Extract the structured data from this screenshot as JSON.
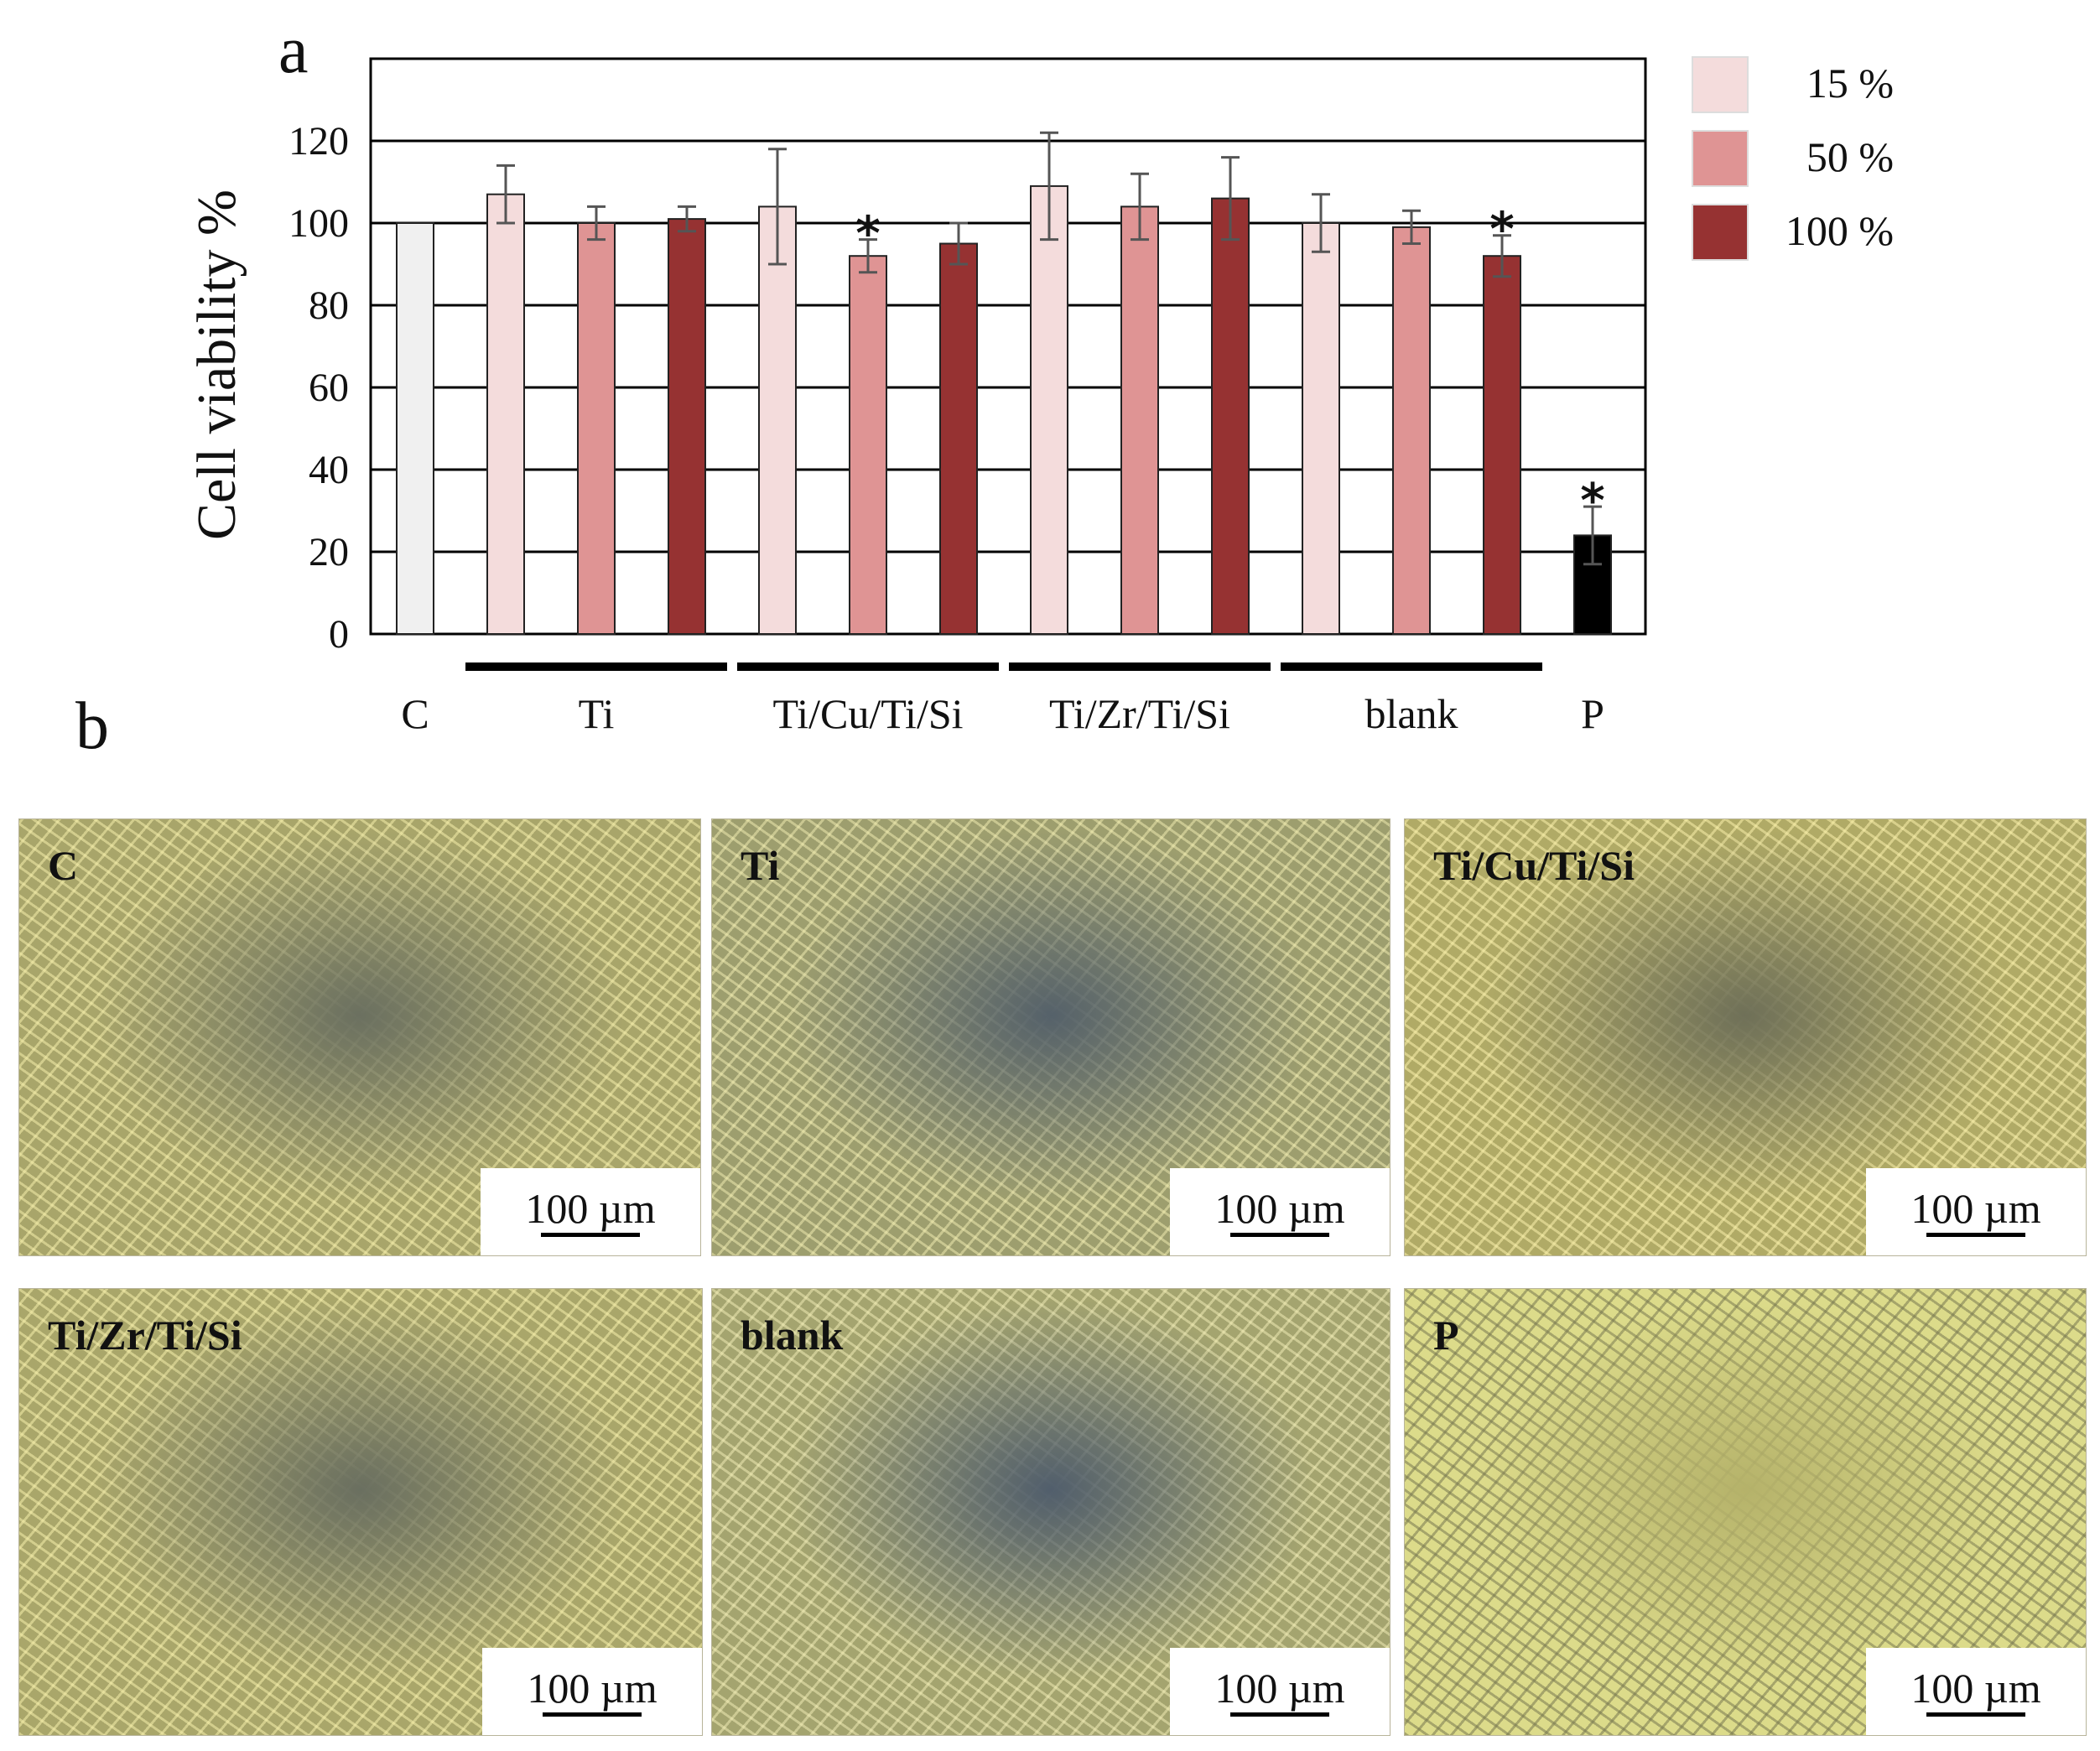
{
  "panel_a_label": "a",
  "panel_b_label": "b",
  "chart_data": {
    "type": "bar",
    "title": "",
    "ylabel": "Cell viability %",
    "xlabel": "",
    "ylim": [
      0,
      140
    ],
    "yticks": [
      0,
      20,
      40,
      60,
      80,
      100,
      120
    ],
    "grid": true,
    "legend_position": "right",
    "legend": [
      {
        "label": "15 %",
        "color": "#f4dcdc"
      },
      {
        "label": "50 %",
        "color": "#df9494"
      },
      {
        "label": "100 %",
        "color": "#963232"
      }
    ],
    "groups": [
      {
        "label": "C",
        "underline": false,
        "bars": [
          {
            "value": 100,
            "error": 0,
            "color": "#f0f0f0",
            "significant": false
          }
        ]
      },
      {
        "label": "Ti",
        "underline": true,
        "bars": [
          {
            "value": 107,
            "error": 7,
            "color": "#f4dcdc",
            "significant": false
          },
          {
            "value": 100,
            "error": 4,
            "color": "#df9494",
            "significant": false
          },
          {
            "value": 101,
            "error": 3,
            "color": "#963232",
            "significant": false
          }
        ]
      },
      {
        "label": "Ti/Cu/Ti/Si",
        "underline": true,
        "bars": [
          {
            "value": 104,
            "error": 14,
            "color": "#f4dcdc",
            "significant": false
          },
          {
            "value": 92,
            "error": 4,
            "color": "#df9494",
            "significant": true
          },
          {
            "value": 95,
            "error": 5,
            "color": "#963232",
            "significant": false
          }
        ]
      },
      {
        "label": "Ti/Zr/Ti/Si",
        "underline": true,
        "bars": [
          {
            "value": 109,
            "error": 13,
            "color": "#f4dcdc",
            "significant": false
          },
          {
            "value": 104,
            "error": 8,
            "color": "#df9494",
            "significant": false
          },
          {
            "value": 106,
            "error": 10,
            "color": "#963232",
            "significant": false
          }
        ]
      },
      {
        "label": "blank",
        "underline": true,
        "bars": [
          {
            "value": 100,
            "error": 7,
            "color": "#f4dcdc",
            "significant": false
          },
          {
            "value": 99,
            "error": 4,
            "color": "#df9494",
            "significant": false
          },
          {
            "value": 92,
            "error": 5,
            "color": "#963232",
            "significant": true
          }
        ]
      },
      {
        "label": "P",
        "underline": false,
        "bars": [
          {
            "value": 24,
            "error": 7,
            "color": "#000000",
            "significant": true
          }
        ]
      }
    ],
    "significance_marker": "*"
  },
  "micrographs": [
    {
      "label": "C",
      "scale": "100 µm"
    },
    {
      "label": "Ti",
      "scale": "100 µm"
    },
    {
      "label": "Ti/Cu/Ti/Si",
      "scale": "100 µm"
    },
    {
      "label": "Ti/Zr/Ti/Si",
      "scale": "100 µm"
    },
    {
      "label": "blank",
      "scale": "100 µm"
    },
    {
      "label": "P",
      "scale": "100 µm"
    }
  ]
}
